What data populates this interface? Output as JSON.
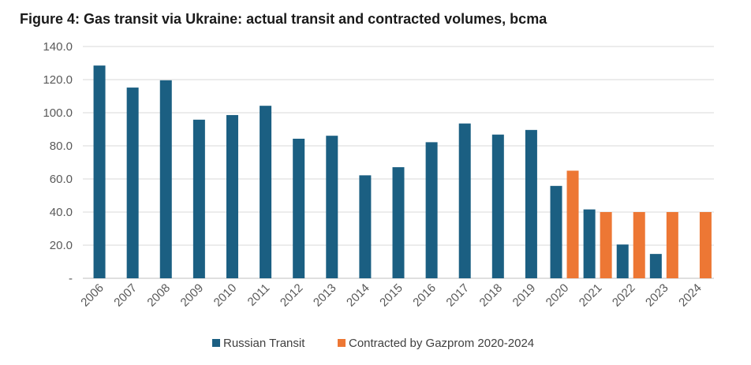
{
  "chart_data": {
    "type": "bar",
    "title": "Figure 4: Gas transit via Ukraine: actual transit and contracted volumes, bcma",
    "xlabel": "",
    "ylabel": "",
    "ylim": [
      0,
      140
    ],
    "yticks": [
      0,
      20,
      40,
      60,
      80,
      100,
      120,
      140
    ],
    "ytick_labels": [
      "-",
      "20.0",
      "40.0",
      "60.0",
      "80.0",
      "100.0",
      "120.0",
      "140.0"
    ],
    "grid": true,
    "legend_position": "bottom",
    "categories": [
      "2006",
      "2007",
      "2008",
      "2009",
      "2010",
      "2011",
      "2012",
      "2013",
      "2014",
      "2015",
      "2016",
      "2017",
      "2018",
      "2019",
      "2020",
      "2021",
      "2022",
      "2023",
      "2024"
    ],
    "series": [
      {
        "name": "Russian Transit",
        "color": "#1b5f82",
        "values": [
          128.5,
          115.2,
          119.6,
          95.8,
          98.6,
          104.2,
          84.3,
          86.1,
          62.2,
          67.1,
          82.2,
          93.5,
          86.8,
          89.6,
          55.8,
          41.6,
          20.4,
          14.7,
          null
        ]
      },
      {
        "name": "Contracted by Gazprom 2020-2024",
        "color": "#ed7734",
        "values": [
          null,
          null,
          null,
          null,
          null,
          null,
          null,
          null,
          null,
          null,
          null,
          null,
          null,
          null,
          65,
          40,
          40,
          40,
          40
        ]
      }
    ]
  }
}
